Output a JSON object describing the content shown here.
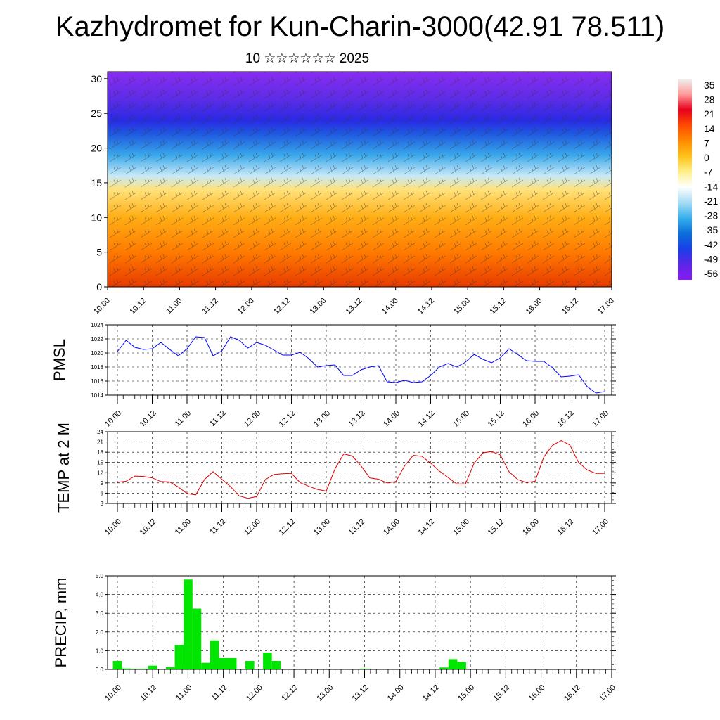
{
  "header": {
    "title": "Kazhydromet for Kun-Charin-3000(42.91 78.511)",
    "subtitle": "10 ☆☆☆☆☆☆ 2025"
  },
  "chart_data": [
    {
      "type": "heatmap",
      "panel": "cross-section",
      "xlabel": "",
      "ylabel": "",
      "x_ticks": [
        "10.00",
        "10.12",
        "11.00",
        "11.12",
        "12.00",
        "12.12",
        "13.00",
        "13.12",
        "14.00",
        "14.12",
        "15.00",
        "15.12",
        "16.00",
        "16.12",
        "17.00"
      ],
      "y_ticks": [
        0,
        5,
        10,
        15,
        20,
        25,
        30
      ],
      "ylim": [
        0,
        31
      ],
      "colorbar_labels": [
        "35",
        "28",
        "21",
        "14",
        "7",
        "0",
        "-7",
        "-14",
        "-21",
        "-28",
        "-35",
        "-42",
        "-49",
        "-56"
      ],
      "colorbar_colors": [
        "#f0f0f0",
        "#ff9b9b",
        "#e8001c",
        "#ff4a00",
        "#ff8a00",
        "#ffc21a",
        "#ffef8a",
        "#ffffff",
        "#a7dcf5",
        "#38b0ec",
        "#0b6fd8",
        "#1a3fe8",
        "#5a26e6",
        "#8a1cf0"
      ],
      "layers": [
        {
          "height": 0,
          "color": "#e83a00"
        },
        {
          "height": 5,
          "color": "#ff7a00"
        },
        {
          "height": 10,
          "color": "#ffae14"
        },
        {
          "height": 14,
          "color": "#ffe27a"
        },
        {
          "height": 16,
          "color": "#c7e9f8"
        },
        {
          "height": 19,
          "color": "#39a7ea"
        },
        {
          "height": 22,
          "color": "#1f5ae0"
        },
        {
          "height": 24,
          "color": "#2a2ae4"
        },
        {
          "height": 27,
          "color": "#5c2ce6"
        },
        {
          "height": 31,
          "color": "#8a2cf2"
        }
      ]
    },
    {
      "type": "line",
      "panel": "pmsl",
      "ylabel": "PMSL",
      "ylim": [
        1014,
        1024
      ],
      "y_ticks": [
        1014,
        1016,
        1018,
        1020,
        1022,
        1024
      ],
      "x_ticks": [
        "10.00",
        "10.12",
        "11.00",
        "11.12",
        "12.00",
        "12.12",
        "13.00",
        "13.12",
        "14.00",
        "14.12",
        "15.00",
        "15.12",
        "16.00",
        "16.12",
        "17.00"
      ],
      "color": "#0000ff",
      "values": [
        1020.2,
        1021.8,
        1020.8,
        1020.5,
        1020.6,
        1021.5,
        1020.5,
        1019.6,
        1020.6,
        1022.3,
        1022.2,
        1019.6,
        1020.3,
        1022.3,
        1021.8,
        1020.7,
        1021.5,
        1021.1,
        1020.4,
        1019.7,
        1019.7,
        1020.1,
        1019.2,
        1018.0,
        1018.2,
        1018.3,
        1016.8,
        1016.8,
        1017.6,
        1018.0,
        1018.2,
        1015.9,
        1015.8,
        1016.1,
        1015.8,
        1015.9,
        1016.8,
        1018.0,
        1018.5,
        1018.0,
        1018.7,
        1019.8,
        1019.1,
        1018.6,
        1019.3,
        1020.6,
        1019.8,
        1018.9,
        1018.8,
        1018.8,
        1017.9,
        1016.6,
        1016.7,
        1016.9,
        1015.2,
        1014.3,
        1014.5
      ]
    },
    {
      "type": "line",
      "panel": "temp",
      "ylabel": "TEMP at 2 M",
      "ylim": [
        3,
        24
      ],
      "y_ticks": [
        3,
        6,
        9,
        12,
        15,
        18,
        21,
        24
      ],
      "x_ticks": [
        "10.00",
        "10.12",
        "11.00",
        "11.12",
        "12.00",
        "12.12",
        "13.00",
        "13.12",
        "14.00",
        "14.12",
        "15.00",
        "15.12",
        "16.00",
        "16.12",
        "17.00"
      ],
      "color": "#e00000",
      "values": [
        9.2,
        9.5,
        11.0,
        10.9,
        10.5,
        9.4,
        9.3,
        7.8,
        5.9,
        5.5,
        10.0,
        12.3,
        10.1,
        7.9,
        5.2,
        4.5,
        5.0,
        10.0,
        11.5,
        11.7,
        11.8,
        9.1,
        8.0,
        7.1,
        6.6,
        13.1,
        17.5,
        16.9,
        14.0,
        10.5,
        10.1,
        9.0,
        9.4,
        14.0,
        17.1,
        16.8,
        14.8,
        12.5,
        10.6,
        8.7,
        8.7,
        14.8,
        17.8,
        18.2,
        17.2,
        12.3,
        10.0,
        9.1,
        9.5,
        16.6,
        20.0,
        21.4,
        20.1,
        15.0,
        12.8,
        11.8,
        11.8
      ]
    },
    {
      "type": "bar",
      "panel": "precip",
      "ylabel": "PRECIP, mm",
      "ylim": [
        0,
        5
      ],
      "y_ticks": [
        "0.0",
        "1.0",
        "2.0",
        "3.0",
        "4.0",
        "5.0"
      ],
      "x_ticks": [
        "10.00",
        "10.12",
        "11.00",
        "11.12",
        "12.00",
        "12.12",
        "13.00",
        "13.12",
        "14.00",
        "14.12",
        "15.00",
        "15.12",
        "16.00",
        "16.12",
        "17.00"
      ],
      "color": "#00e600",
      "values": [
        0.45,
        0.05,
        0.02,
        0.03,
        0.2,
        0.0,
        0.12,
        1.3,
        4.8,
        3.25,
        0.35,
        1.55,
        0.6,
        0.6,
        0.0,
        0.45,
        0.0,
        0.9,
        0.45,
        0,
        0,
        0,
        0,
        0,
        0,
        0,
        0,
        0,
        0.03,
        0,
        0,
        0,
        0,
        0,
        0,
        0,
        0,
        0.1,
        0.55,
        0.4,
        0,
        0,
        0,
        0,
        0,
        0,
        0,
        0,
        0,
        0,
        0,
        0,
        0,
        0,
        0,
        0
      ]
    }
  ]
}
